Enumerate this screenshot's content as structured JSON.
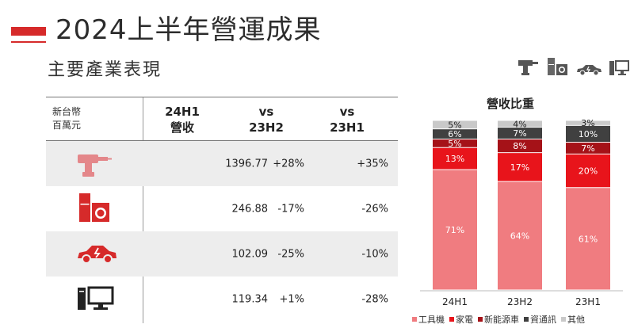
{
  "header": {
    "title": "2024上半年營運成果",
    "subtitle": "主要產業表現"
  },
  "top_icons": [
    "power-drill-icon",
    "appliance-icon",
    "electric-car-icon",
    "computer-icon"
  ],
  "table": {
    "unit_line1": "新台幣",
    "unit_line2": "百萬元",
    "columns": [
      {
        "line1": "24H1",
        "line2": "營收"
      },
      {
        "line1": "vs",
        "line2": "23H2"
      },
      {
        "line1": "vs",
        "line2": "23H1"
      }
    ],
    "rows": [
      {
        "icon": "power-drill-icon",
        "revenue": "1396.77",
        "vs_23h2": "+28%",
        "vs_23h1": "+35%"
      },
      {
        "icon": "appliance-icon",
        "revenue": "246.88",
        "vs_23h2": "-17%",
        "vs_23h1": "-26%"
      },
      {
        "icon": "electric-car-icon",
        "revenue": "102.09",
        "vs_23h2": "-25%",
        "vs_23h1": "-10%"
      },
      {
        "icon": "computer-icon",
        "revenue": "119.34",
        "vs_23h2": "+1%",
        "vs_23h1": "-28%"
      }
    ]
  },
  "chart_data": {
    "type": "bar",
    "stacked": true,
    "title": "營收比重",
    "categories": [
      "24H1",
      "23H2",
      "23H1"
    ],
    "series": [
      {
        "name": "工具機",
        "color": "#f07c80",
        "values": [
          71,
          64,
          61
        ]
      },
      {
        "name": "家電",
        "color": "#e8141b",
        "values": [
          13,
          17,
          20
        ]
      },
      {
        "name": "新能源車",
        "color": "#a51218",
        "values": [
          5,
          8,
          7
        ]
      },
      {
        "name": "資通訊",
        "color": "#404040",
        "values": [
          6,
          7,
          10
        ]
      },
      {
        "name": "其他",
        "color": "#c9c9c9",
        "values": [
          5,
          4,
          3
        ]
      }
    ],
    "ylim": [
      0,
      100
    ],
    "value_suffix": "%",
    "legend_position": "bottom"
  }
}
